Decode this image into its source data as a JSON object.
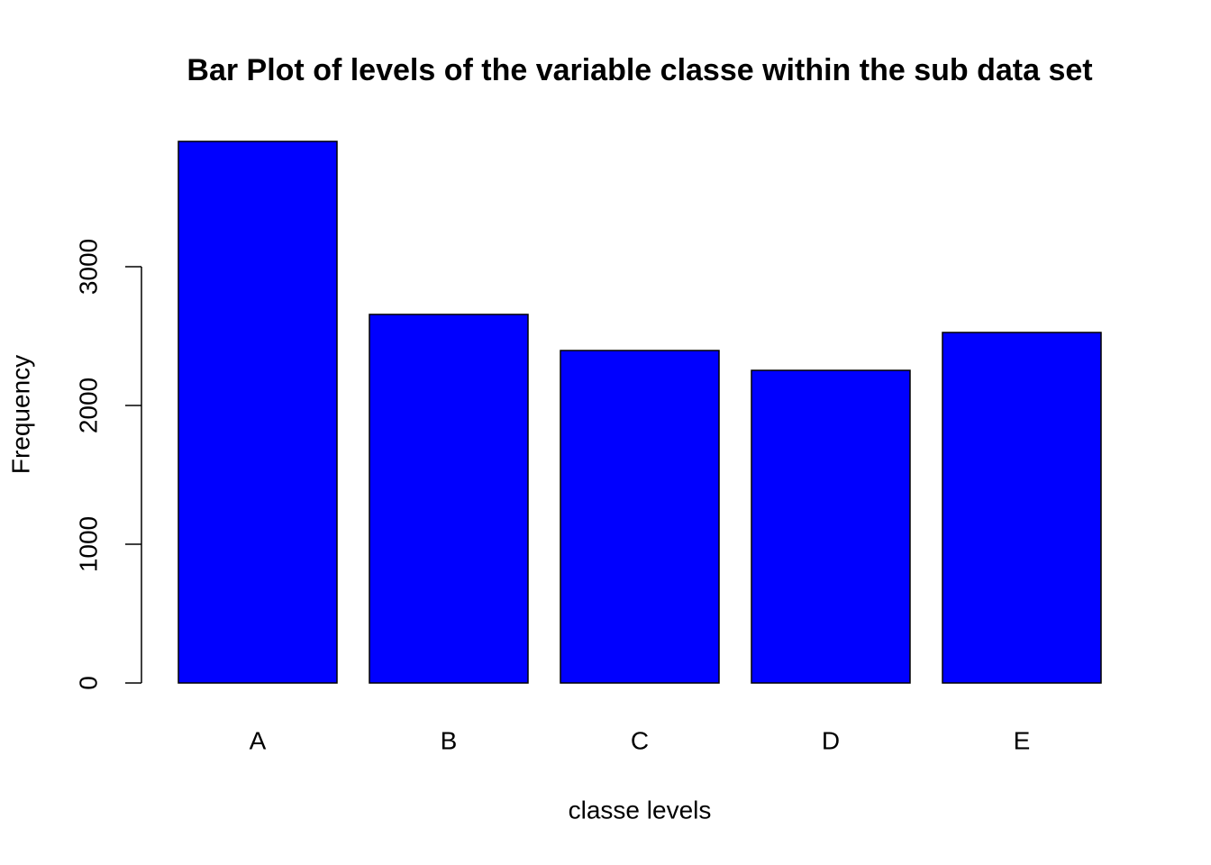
{
  "chart_data": {
    "type": "bar",
    "title": "Bar Plot of levels of the variable classe within the sub data set",
    "x_label": "classe levels",
    "y_label": "Frequency",
    "categories": [
      "A",
      "B",
      "C",
      "D",
      "E"
    ],
    "values": [
      3903,
      2656,
      2396,
      2253,
      2526
    ],
    "color": "#0000ff",
    "ylim": [
      0,
      4100
    ],
    "yticks": [
      0,
      1000,
      2000,
      3000
    ],
    "grid": false
  }
}
